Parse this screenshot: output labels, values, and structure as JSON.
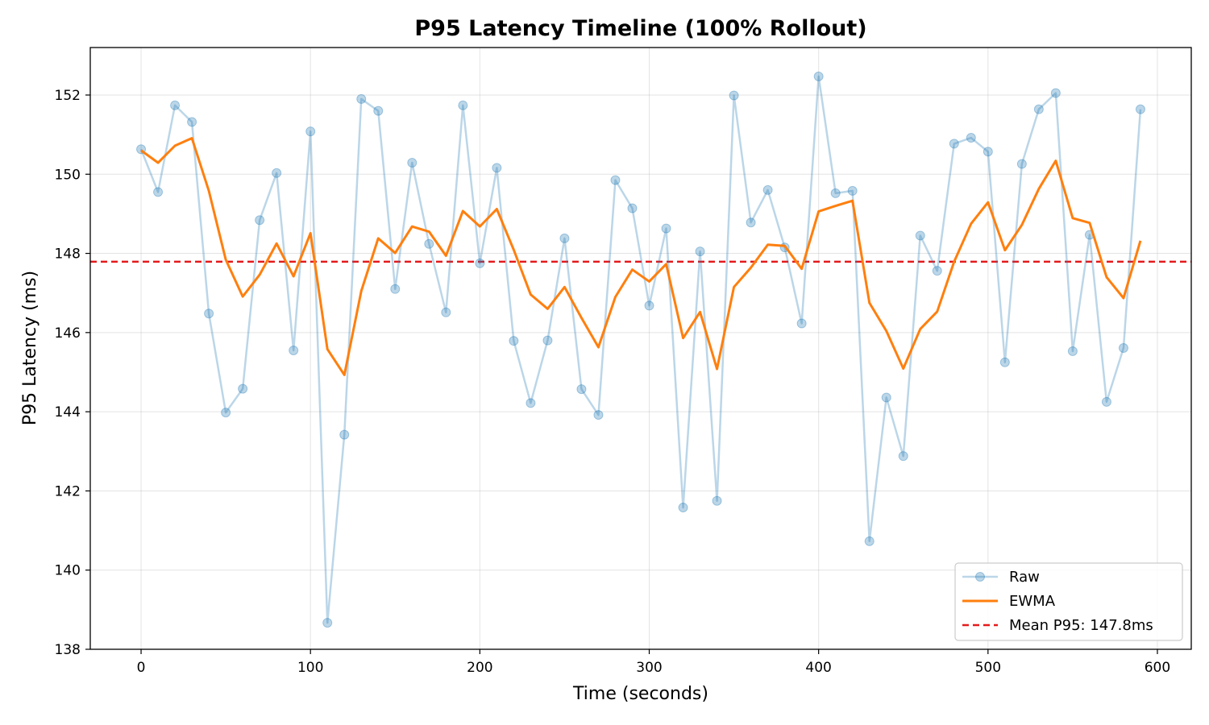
{
  "chart_data": {
    "type": "line",
    "title": "P95 Latency Timeline (100% Rollout)",
    "xlabel": "Time (seconds)",
    "ylabel": "P95 Latency (ms)",
    "xlim": [
      -30,
      620
    ],
    "ylim": [
      138,
      153.2
    ],
    "xticks": [
      0,
      100,
      200,
      300,
      400,
      500,
      600
    ],
    "yticks": [
      138,
      140,
      142,
      144,
      146,
      148,
      150,
      152
    ],
    "grid": true,
    "legend_position": "lower-right",
    "x": [
      0,
      10,
      20,
      30,
      40,
      50,
      60,
      70,
      80,
      90,
      100,
      110,
      120,
      130,
      140,
      150,
      160,
      170,
      180,
      190,
      200,
      210,
      220,
      230,
      240,
      250,
      260,
      270,
      280,
      290,
      300,
      310,
      320,
      330,
      340,
      350,
      360,
      370,
      380,
      390,
      400,
      410,
      420,
      430,
      440,
      450,
      460,
      470,
      480,
      490,
      500,
      510,
      520,
      530,
      540,
      550,
      560,
      570,
      580,
      590
    ],
    "series": [
      {
        "name": "Raw",
        "color": "#1f77b4",
        "style": "line-with-markers",
        "values": [
          150.63,
          149.55,
          151.74,
          151.32,
          146.48,
          143.98,
          144.58,
          148.84,
          150.03,
          145.55,
          151.08,
          138.67,
          143.42,
          151.9,
          151.6,
          147.1,
          150.29,
          148.24,
          146.51,
          151.74,
          147.75,
          150.16,
          145.79,
          144.22,
          145.8,
          148.38,
          144.57,
          143.92,
          149.85,
          149.14,
          146.68,
          148.63,
          141.58,
          148.05,
          141.75,
          151.99,
          148.78,
          149.6,
          148.15,
          146.23,
          152.47,
          149.52,
          149.58,
          140.73,
          144.36,
          142.88,
          148.45,
          147.56,
          150.77,
          150.92,
          150.57,
          145.25,
          150.26,
          151.64,
          152.05,
          145.53,
          148.47,
          144.25,
          145.61,
          151.64
        ]
      },
      {
        "name": "EWMA",
        "color": "#ff7f0e",
        "style": "line",
        "values": [
          150.6,
          150.29,
          150.72,
          150.91,
          149.58,
          147.84,
          146.91,
          147.46,
          148.25,
          147.42,
          148.51,
          145.58,
          144.93,
          147.05,
          148.38,
          148.01,
          148.68,
          148.55,
          147.94,
          149.07,
          148.68,
          149.12,
          148.09,
          146.96,
          146.6,
          147.15,
          146.37,
          145.63,
          146.9,
          147.59,
          147.29,
          147.73,
          145.86,
          146.52,
          145.08,
          147.15,
          147.64,
          148.22,
          148.19,
          147.61,
          149.06,
          149.2,
          149.33,
          146.75,
          146.04,
          145.09,
          146.09,
          146.53,
          147.79,
          148.75,
          149.29,
          148.08,
          148.72,
          149.63,
          150.34,
          148.89,
          148.77,
          147.4,
          146.87,
          148.32
        ]
      }
    ],
    "reference_line": {
      "label": "Mean P95: 147.8ms",
      "value": 147.79,
      "color": "#e41a1c",
      "style": "dashed"
    }
  }
}
